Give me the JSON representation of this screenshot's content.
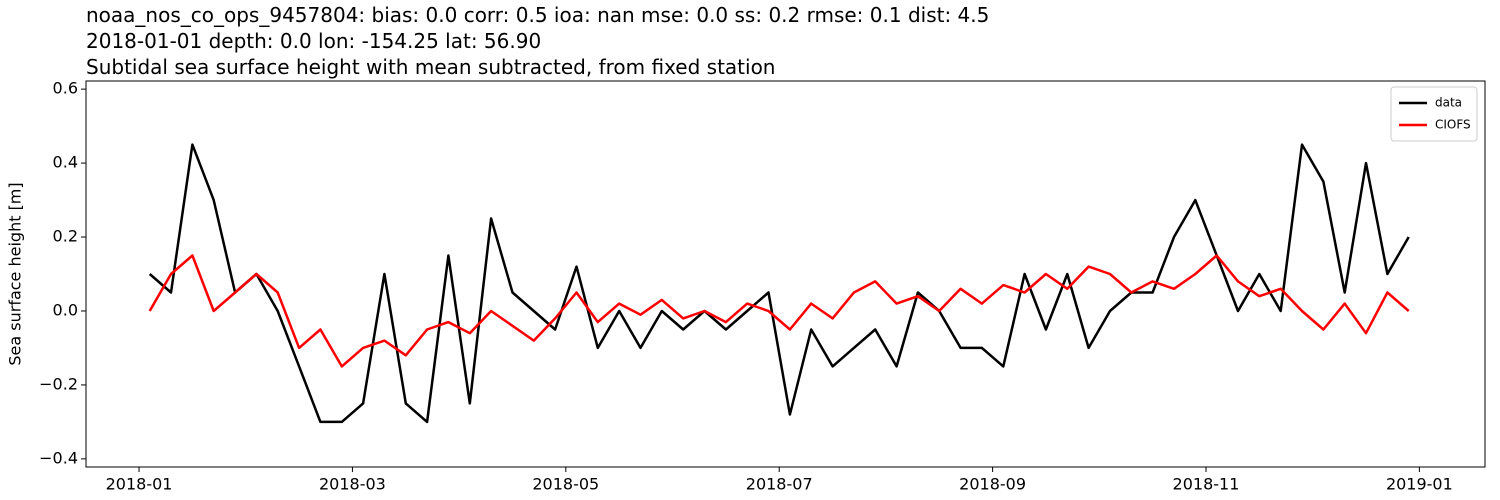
{
  "chart_data": {
    "type": "line",
    "title": "noaa_nos_co_ops_9457804: bias: 0.0  corr: 0.5  ioa: nan  mse: 0.0  ss: 0.2  rmse: 0.1  dist: 4.5",
    "subtitle": "2018-01-01 depth: 0.0 lon: -154.25 lat: 56.90",
    "subtitle2": "Subtidal sea surface height with mean subtracted, from fixed station",
    "y_label": "Sea surface height [m]",
    "x": [
      1.1,
      1.3,
      1.5,
      1.7,
      1.9,
      2.1,
      2.3,
      2.5,
      2.7,
      2.9,
      3.1,
      3.3,
      3.5,
      3.7,
      3.9,
      4.1,
      4.3,
      4.5,
      4.7,
      4.9,
      5.1,
      5.3,
      5.5,
      5.7,
      5.9,
      6.1,
      6.3,
      6.5,
      6.7,
      6.9,
      7.1,
      7.3,
      7.5,
      7.7,
      7.9,
      8.1,
      8.3,
      8.5,
      8.7,
      8.9,
      9.1,
      9.3,
      9.5,
      9.7,
      9.9,
      10.1,
      10.3,
      10.5,
      10.7,
      10.9,
      11.1,
      11.3,
      11.5,
      11.7,
      11.9,
      12.1,
      12.3,
      12.5,
      12.7,
      12.9
    ],
    "series": [
      {
        "name": "data",
        "color": "#000000",
        "values": [
          0.1,
          0.05,
          0.45,
          0.3,
          0.05,
          0.1,
          0.0,
          -0.15,
          -0.3,
          -0.3,
          -0.25,
          0.1,
          -0.25,
          -0.3,
          0.15,
          -0.25,
          0.25,
          0.05,
          0.0,
          -0.05,
          0.12,
          -0.1,
          0.0,
          -0.1,
          0.0,
          -0.05,
          0.0,
          -0.05,
          0.0,
          0.05,
          -0.28,
          -0.05,
          -0.15,
          -0.1,
          -0.05,
          -0.15,
          0.05,
          0.0,
          -0.1,
          -0.1,
          -0.15,
          0.1,
          -0.05,
          0.1,
          -0.1,
          0.0,
          0.05,
          0.05,
          0.2,
          0.3,
          0.15,
          0.0,
          0.1,
          0.0,
          0.45,
          0.35,
          0.05,
          0.4,
          0.1,
          0.2
        ]
      },
      {
        "name": "CIOFS",
        "color": "#ff0000",
        "values": [
          0.0,
          0.1,
          0.15,
          0.0,
          0.05,
          0.1,
          0.05,
          -0.1,
          -0.05,
          -0.15,
          -0.1,
          -0.08,
          -0.12,
          -0.05,
          -0.03,
          -0.06,
          0.0,
          -0.04,
          -0.08,
          -0.02,
          0.05,
          -0.03,
          0.02,
          -0.01,
          0.03,
          -0.02,
          0.0,
          -0.03,
          0.02,
          0.0,
          -0.05,
          0.02,
          -0.02,
          0.05,
          0.08,
          0.02,
          0.04,
          0.0,
          0.06,
          0.02,
          0.07,
          0.05,
          0.1,
          0.06,
          0.12,
          0.1,
          0.05,
          0.08,
          0.06,
          0.1,
          0.15,
          0.08,
          0.04,
          0.06,
          0.0,
          -0.05,
          0.02,
          -0.06,
          0.05,
          0.0
        ]
      }
    ],
    "xlim": [
      0.503,
      13.615
    ],
    "xticks": [
      {
        "value": 1,
        "label": "2018-01"
      },
      {
        "value": 3,
        "label": "2018-03"
      },
      {
        "value": 5,
        "label": "2018-05"
      },
      {
        "value": 7,
        "label": "2018-07"
      },
      {
        "value": 9,
        "label": "2018-09"
      },
      {
        "value": 11,
        "label": "2018-11"
      },
      {
        "value": 13,
        "label": "2019-01"
      }
    ],
    "ylim": [
      -0.422,
      0.622
    ],
    "yticks": [
      {
        "value": -0.4,
        "label": "−0.4"
      },
      {
        "value": -0.2,
        "label": "−0.2"
      },
      {
        "value": 0,
        "label": "0.0"
      },
      0.2,
      0.4,
      0.6
    ],
    "legend": "upper right"
  }
}
